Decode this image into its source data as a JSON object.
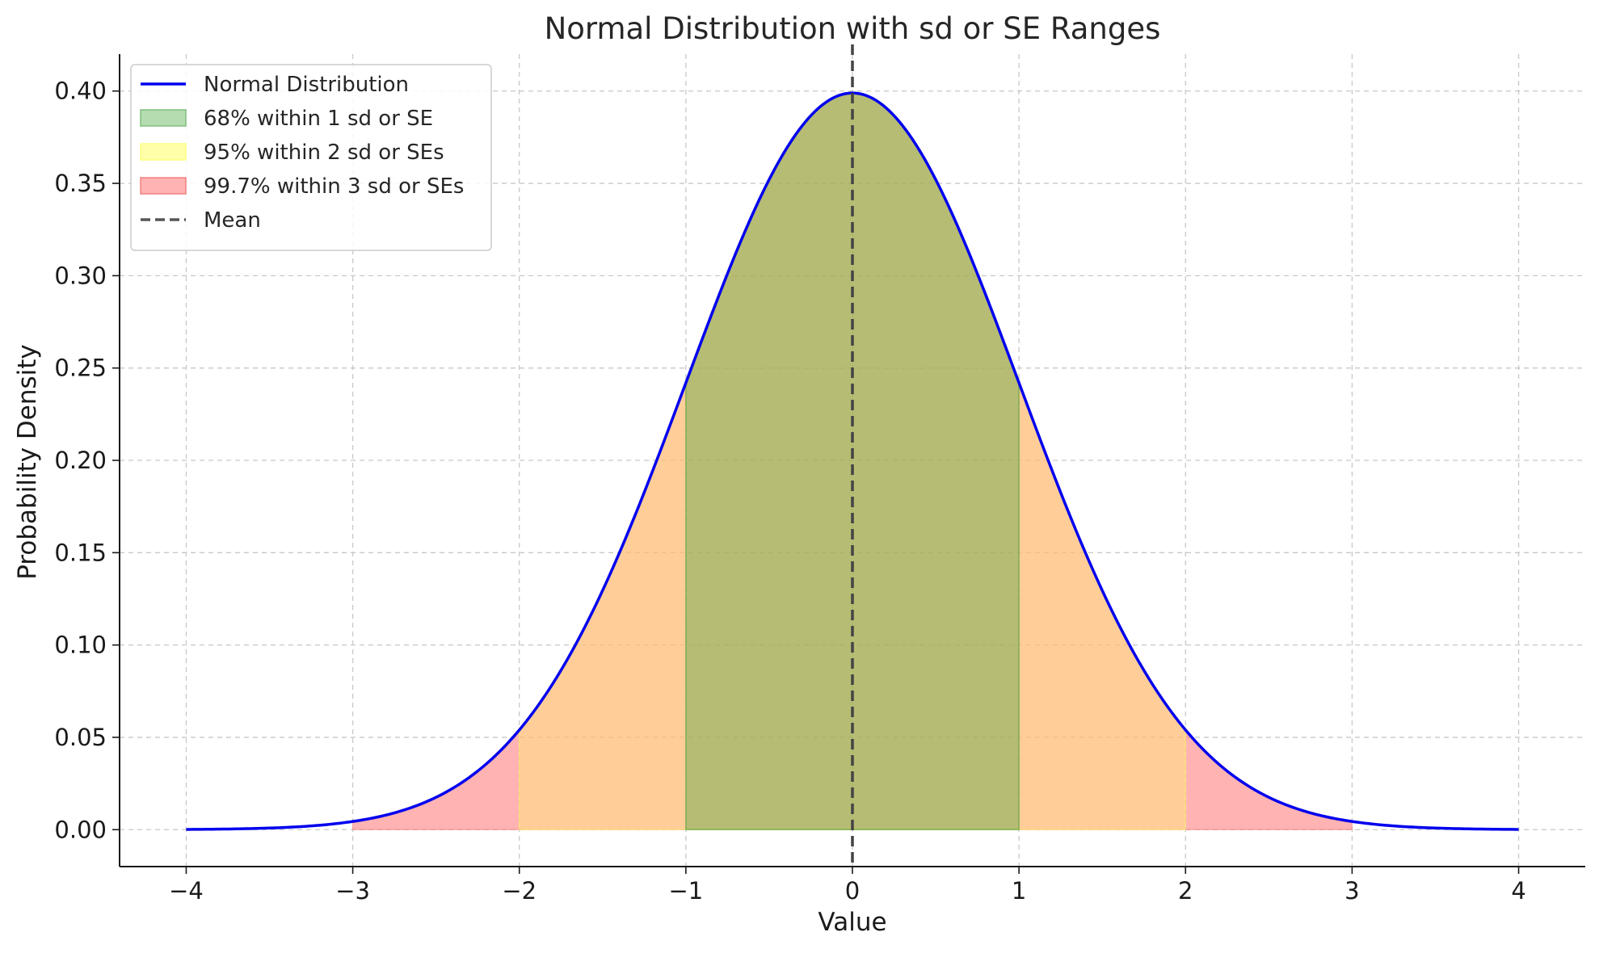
{
  "chart_data": {
    "type": "area",
    "title": "Normal Distribution with sd or SE Ranges",
    "xlabel": "Value",
    "ylabel": "Probability Density",
    "xlim": [
      -4.4,
      4.4
    ],
    "ylim": [
      -0.02,
      0.42
    ],
    "grid": true,
    "legend_position": "top-left",
    "x_ticks": [
      -4,
      -3,
      -2,
      -1,
      0,
      1,
      2,
      3,
      4
    ],
    "x_tick_labels": [
      "−4",
      "−3",
      "−2",
      "−1",
      "0",
      "1",
      "2",
      "3",
      "4"
    ],
    "y_ticks": [
      0.0,
      0.05,
      0.1,
      0.15,
      0.2,
      0.25,
      0.3,
      0.35,
      0.4
    ],
    "y_tick_labels": [
      "0.00",
      "0.05",
      "0.10",
      "0.15",
      "0.20",
      "0.25",
      "0.30",
      "0.35",
      "0.40"
    ],
    "curve": {
      "name": "Normal Distribution",
      "mean": 0,
      "sd": 1,
      "x_range": [
        -4,
        4
      ],
      "color": "#0000ee"
    },
    "bands": [
      {
        "name": "99.7% within 3 sd or SEs",
        "from": -3,
        "to": 3,
        "color": "#ff8080",
        "opacity": 0.6
      },
      {
        "name": "95% within 2 sd or SEs",
        "from": -2,
        "to": 2,
        "color": "#ffff66",
        "opacity": 0.35
      },
      {
        "name": "68% within 1 sd or SE",
        "from": -1,
        "to": 1,
        "color": "#2f9e2f",
        "opacity": 0.35
      }
    ],
    "mean_line": {
      "name": "Mean",
      "x": 0,
      "color": "#444444"
    },
    "legend": [
      {
        "label": "Normal Distribution",
        "kind": "line",
        "color": "#0000ee"
      },
      {
        "label": "68% within 1 sd or SE",
        "kind": "patch",
        "color": "#b5dcb1",
        "edge": "#7fbf7a"
      },
      {
        "label": "95% within 2 sd or SEs",
        "kind": "patch",
        "color": "#ffffaa",
        "edge": "#ffff80"
      },
      {
        "label": "99.7% within 3 sd or SEs",
        "kind": "patch",
        "color": "#ffb3b3",
        "edge": "#f08080"
      },
      {
        "label": "Mean",
        "kind": "dashed",
        "color": "#555555"
      }
    ]
  }
}
